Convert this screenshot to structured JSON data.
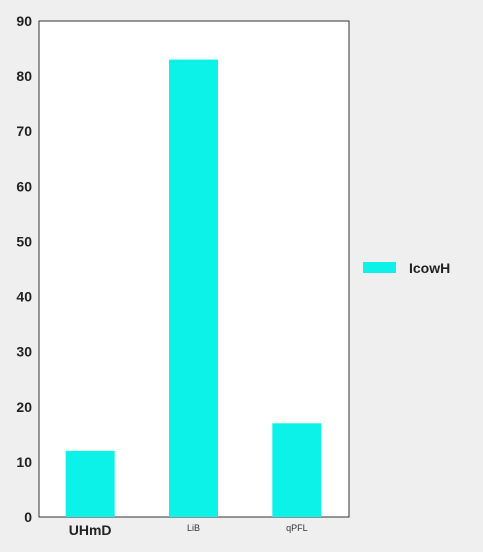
{
  "chart_data": {
    "type": "bar",
    "categories": [
      "UHmD",
      "LiB",
      "qPFL"
    ],
    "series": [
      {
        "name": "IcowH",
        "values": [
          12,
          83,
          17
        ]
      }
    ],
    "ylim": [
      0,
      90
    ],
    "yticks": [
      0,
      10,
      20,
      30,
      40,
      50,
      60,
      70,
      80,
      90
    ],
    "title": "",
    "xlabel": "",
    "ylabel": "",
    "grid": false,
    "legend_position": "right",
    "colors": {
      "bar": "#0df2e8",
      "axis": "#333333",
      "plot_bg": "#ffffff",
      "page_bg": "#efefef"
    }
  }
}
